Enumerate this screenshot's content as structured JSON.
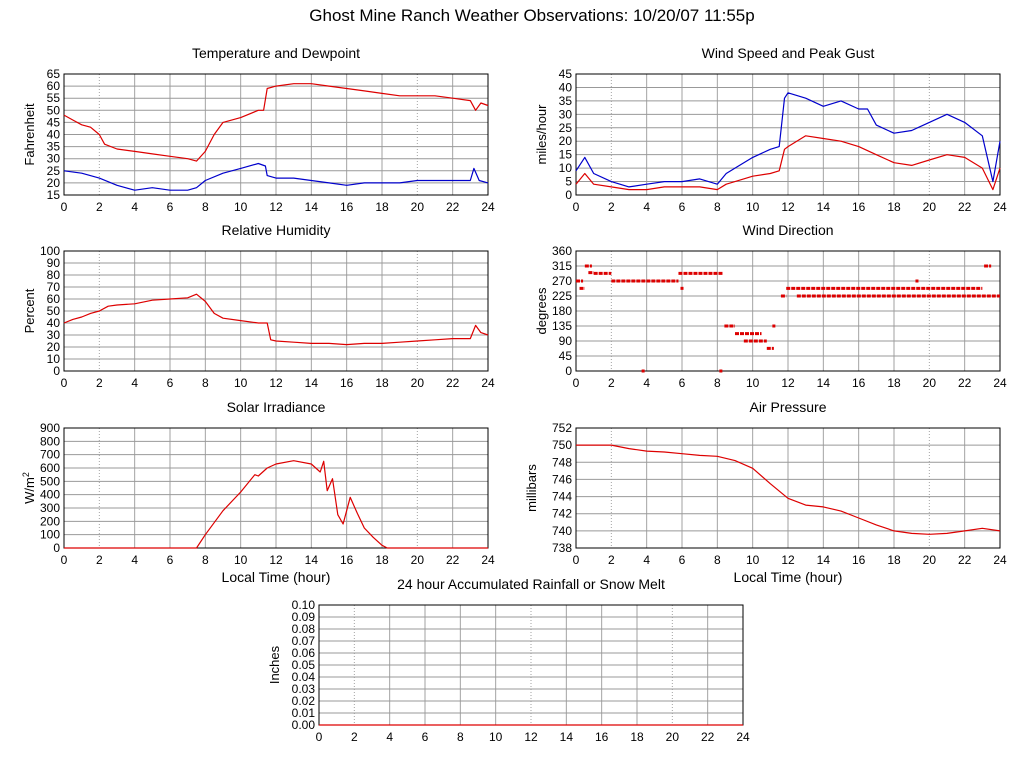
{
  "page": {
    "title": "Ghost Mine Ranch Weather Observations: 10/20/07 11:55p"
  },
  "colors": {
    "temperature": "#dd0000",
    "dewpoint": "#0000cc",
    "grid": "#999999",
    "axis": "#000000"
  },
  "chart_data": [
    {
      "id": "temperature",
      "type": "line",
      "title": "Temperature and Dewpoint",
      "xlabel": "",
      "ylabel": "Fahrenheit",
      "xlim": [
        0,
        24
      ],
      "ylim": [
        15,
        65
      ],
      "xticks": [
        0,
        2,
        4,
        6,
        8,
        10,
        12,
        14,
        16,
        18,
        20,
        22,
        24
      ],
      "yticks": [
        15,
        20,
        25,
        30,
        35,
        40,
        45,
        50,
        55,
        60,
        65
      ],
      "grid": true,
      "series": [
        {
          "color": "#dd0000",
          "x": [
            0,
            0.5,
            1,
            1.5,
            2,
            2.3,
            3,
            4,
            5,
            6,
            7,
            7.5,
            8,
            8.5,
            9,
            10,
            11,
            11.3,
            11.5,
            12,
            13,
            14,
            15,
            16,
            17,
            18,
            19,
            20,
            21,
            22,
            23,
            23.3,
            23.6,
            24
          ],
          "y": [
            48,
            46,
            44,
            43,
            40,
            36,
            34,
            33,
            32,
            31,
            30,
            29,
            33,
            40,
            45,
            47,
            50,
            50,
            59,
            60,
            61,
            61,
            60,
            59,
            58,
            57,
            56,
            56,
            56,
            55,
            54,
            50,
            53,
            52
          ]
        },
        {
          "color": "#0000cc",
          "x": [
            0,
            1,
            2,
            3,
            4,
            5,
            6,
            7,
            7.5,
            8,
            9,
            10,
            11,
            11.4,
            11.5,
            12,
            13,
            14,
            15,
            16,
            17,
            18,
            19,
            20,
            21,
            22,
            23,
            23.2,
            23.5,
            24
          ],
          "y": [
            25,
            24,
            22,
            19,
            17,
            18,
            17,
            17,
            18,
            21,
            24,
            26,
            28,
            27,
            23,
            22,
            22,
            21,
            20,
            19,
            20,
            20,
            20,
            21,
            21,
            21,
            21,
            26,
            21,
            20
          ]
        }
      ]
    },
    {
      "id": "wind-speed",
      "type": "line",
      "title": "Wind Speed and Peak Gust",
      "xlabel": "",
      "ylabel": "miles/hour",
      "xlim": [
        0,
        24
      ],
      "ylim": [
        0,
        45
      ],
      "xticks": [
        0,
        2,
        4,
        6,
        8,
        10,
        12,
        14,
        16,
        18,
        20,
        22,
        24
      ],
      "yticks": [
        0,
        5,
        10,
        15,
        20,
        25,
        30,
        35,
        40,
        45
      ],
      "grid": true,
      "series": [
        {
          "color": "#0000cc",
          "x": [
            0,
            0.5,
            1,
            2,
            3,
            4,
            5,
            6,
            7,
            8,
            8.5,
            9,
            10,
            11,
            11.5,
            11.8,
            12,
            13,
            14,
            15,
            16,
            16.5,
            17,
            18,
            19,
            20,
            21,
            22,
            23,
            23.6,
            24
          ],
          "y": [
            9,
            14,
            8,
            5,
            3,
            4,
            5,
            5,
            6,
            4,
            8,
            10,
            14,
            17,
            18,
            36,
            38,
            36,
            33,
            35,
            32,
            32,
            26,
            23,
            24,
            27,
            30,
            27,
            22,
            5,
            20
          ]
        },
        {
          "color": "#dd0000",
          "x": [
            0,
            0.5,
            1,
            2,
            3,
            4,
            5,
            6,
            7,
            8,
            8.5,
            9,
            10,
            11,
            11.5,
            11.8,
            12,
            13,
            14,
            15,
            16,
            17,
            18,
            19,
            20,
            21,
            22,
            23,
            23.6,
            24
          ],
          "y": [
            4,
            8,
            4,
            3,
            2,
            2,
            3,
            3,
            3,
            2,
            4,
            5,
            7,
            8,
            9,
            17,
            18,
            22,
            21,
            20,
            18,
            15,
            12,
            11,
            13,
            15,
            14,
            10,
            2,
            10
          ]
        }
      ]
    },
    {
      "id": "humidity",
      "type": "line",
      "title": "Relative Humidity",
      "xlabel": "",
      "ylabel": "Percent",
      "xlim": [
        0,
        24
      ],
      "ylim": [
        0,
        100
      ],
      "xticks": [
        0,
        2,
        4,
        6,
        8,
        10,
        12,
        14,
        16,
        18,
        20,
        22,
        24
      ],
      "yticks": [
        0,
        10,
        20,
        30,
        40,
        50,
        60,
        70,
        80,
        90,
        100
      ],
      "grid": true,
      "series": [
        {
          "color": "#dd0000",
          "x": [
            0,
            0.5,
            1,
            1.5,
            2,
            2.5,
            3,
            4,
            5,
            6,
            7,
            7.5,
            8,
            8.5,
            9,
            10,
            11,
            11.5,
            11.7,
            12,
            13,
            14,
            15,
            16,
            17,
            18,
            19,
            20,
            21,
            22,
            23,
            23.3,
            23.6,
            24
          ],
          "y": [
            40,
            43,
            45,
            48,
            50,
            54,
            55,
            56,
            59,
            60,
            61,
            64,
            58,
            48,
            44,
            42,
            40,
            40,
            26,
            25,
            24,
            23,
            23,
            22,
            23,
            23,
            24,
            25,
            26,
            27,
            27,
            38,
            32,
            30
          ]
        }
      ]
    },
    {
      "id": "wind-direction",
      "type": "scatter",
      "title": "Wind Direction",
      "xlabel": "",
      "ylabel": "degrees",
      "xlim": [
        0,
        24
      ],
      "ylim": [
        0,
        360
      ],
      "xticks": [
        0,
        2,
        4,
        6,
        8,
        10,
        12,
        14,
        16,
        18,
        20,
        22,
        24
      ],
      "yticks": [
        0,
        45,
        90,
        135,
        180,
        225,
        270,
        315,
        360
      ],
      "grid": true,
      "series": [
        {
          "color": "#dd0000",
          "segments": [
            {
              "x0": 0,
              "x1": 0.4,
              "y": 270
            },
            {
              "x0": 0.2,
              "x1": 0.5,
              "y": 248
            },
            {
              "x0": 0.5,
              "x1": 0.9,
              "y": 315
            },
            {
              "x0": 0.7,
              "x1": 1.0,
              "y": 295
            },
            {
              "x0": 1.0,
              "x1": 2.0,
              "y": 293
            },
            {
              "x0": 2.0,
              "x1": 5.8,
              "y": 270
            },
            {
              "x0": 5.8,
              "x1": 8.3,
              "y": 293
            },
            {
              "x0": 8.4,
              "x1": 9.0,
              "y": 135
            },
            {
              "x0": 9.0,
              "x1": 10.5,
              "y": 112
            },
            {
              "x0": 9.5,
              "x1": 10.8,
              "y": 90
            },
            {
              "x0": 10.8,
              "x1": 11.2,
              "y": 68
            },
            {
              "x0": 11.6,
              "x1": 11.9,
              "y": 225
            },
            {
              "x0": 11.9,
              "x1": 23.0,
              "y": 248
            },
            {
              "x0": 12.5,
              "x1": 24.0,
              "y": 225
            },
            {
              "x0": 23.1,
              "x1": 23.5,
              "y": 315
            }
          ],
          "points": [
            {
              "x": 3.8,
              "y": 0
            },
            {
              "x": 8.2,
              "y": 0
            },
            {
              "x": 6.0,
              "y": 248
            },
            {
              "x": 19.3,
              "y": 270
            },
            {
              "x": 11.2,
              "y": 135
            }
          ]
        }
      ]
    },
    {
      "id": "solar",
      "type": "line",
      "title": "Solar Irradiance",
      "xlabel": "Local Time (hour)",
      "ylabel": "W/m",
      "ylabel_sup": "2",
      "xlim": [
        0,
        24
      ],
      "ylim": [
        0,
        900
      ],
      "xticks": [
        0,
        2,
        4,
        6,
        8,
        10,
        12,
        14,
        16,
        18,
        20,
        22,
        24
      ],
      "yticks": [
        0,
        100,
        200,
        300,
        400,
        500,
        600,
        700,
        800,
        900
      ],
      "grid": true,
      "series": [
        {
          "color": "#dd0000",
          "x": [
            0,
            7.5,
            8,
            9,
            10,
            10.8,
            11,
            11.5,
            12,
            13,
            14,
            14.5,
            14.7,
            14.9,
            15.2,
            15.5,
            15.8,
            16.2,
            16.6,
            17,
            17.5,
            18,
            18.3,
            19,
            24
          ],
          "y": [
            0,
            0,
            100,
            280,
            420,
            550,
            540,
            600,
            630,
            655,
            630,
            570,
            650,
            430,
            520,
            250,
            180,
            380,
            260,
            150,
            80,
            20,
            0,
            0,
            0
          ]
        }
      ]
    },
    {
      "id": "pressure",
      "type": "line",
      "title": "Air Pressure",
      "xlabel": "Local Time (hour)",
      "ylabel": "millibars",
      "xlim": [
        0,
        24
      ],
      "ylim": [
        738,
        752
      ],
      "xticks": [
        0,
        2,
        4,
        6,
        8,
        10,
        12,
        14,
        16,
        18,
        20,
        22,
        24
      ],
      "yticks": [
        738,
        740,
        742,
        744,
        746,
        748,
        750,
        752
      ],
      "grid": true,
      "series": [
        {
          "color": "#dd0000",
          "x": [
            0,
            1,
            2,
            3,
            4,
            5,
            6,
            7,
            8,
            9,
            10,
            11,
            12,
            13,
            14,
            15,
            16,
            17,
            18,
            19,
            20,
            21,
            22,
            23,
            24
          ],
          "y": [
            750,
            750,
            750,
            749.6,
            749.3,
            749.2,
            749.0,
            748.8,
            748.7,
            748.2,
            747.3,
            745.5,
            743.8,
            743.0,
            742.8,
            742.3,
            741.5,
            740.7,
            740.0,
            739.7,
            739.6,
            739.7,
            740.0,
            740.3,
            740.0
          ]
        }
      ]
    },
    {
      "id": "rainfall",
      "type": "line",
      "title": "24 hour Accumulated Rainfall or Snow Melt",
      "xlabel": "",
      "ylabel": "Inches",
      "xlim": [
        0,
        24
      ],
      "ylim": [
        0,
        0.1
      ],
      "xticks": [
        0,
        2,
        4,
        6,
        8,
        10,
        12,
        14,
        16,
        18,
        20,
        22,
        24
      ],
      "yticks": [
        "0.00",
        "0.01",
        "0.02",
        "0.03",
        "0.04",
        "0.05",
        "0.06",
        "0.07",
        "0.08",
        "0.09",
        "0.10"
      ],
      "grid": true,
      "series": [
        {
          "color": "#dd0000",
          "x": [
            0,
            24
          ],
          "y": [
            0,
            0
          ]
        }
      ]
    }
  ]
}
